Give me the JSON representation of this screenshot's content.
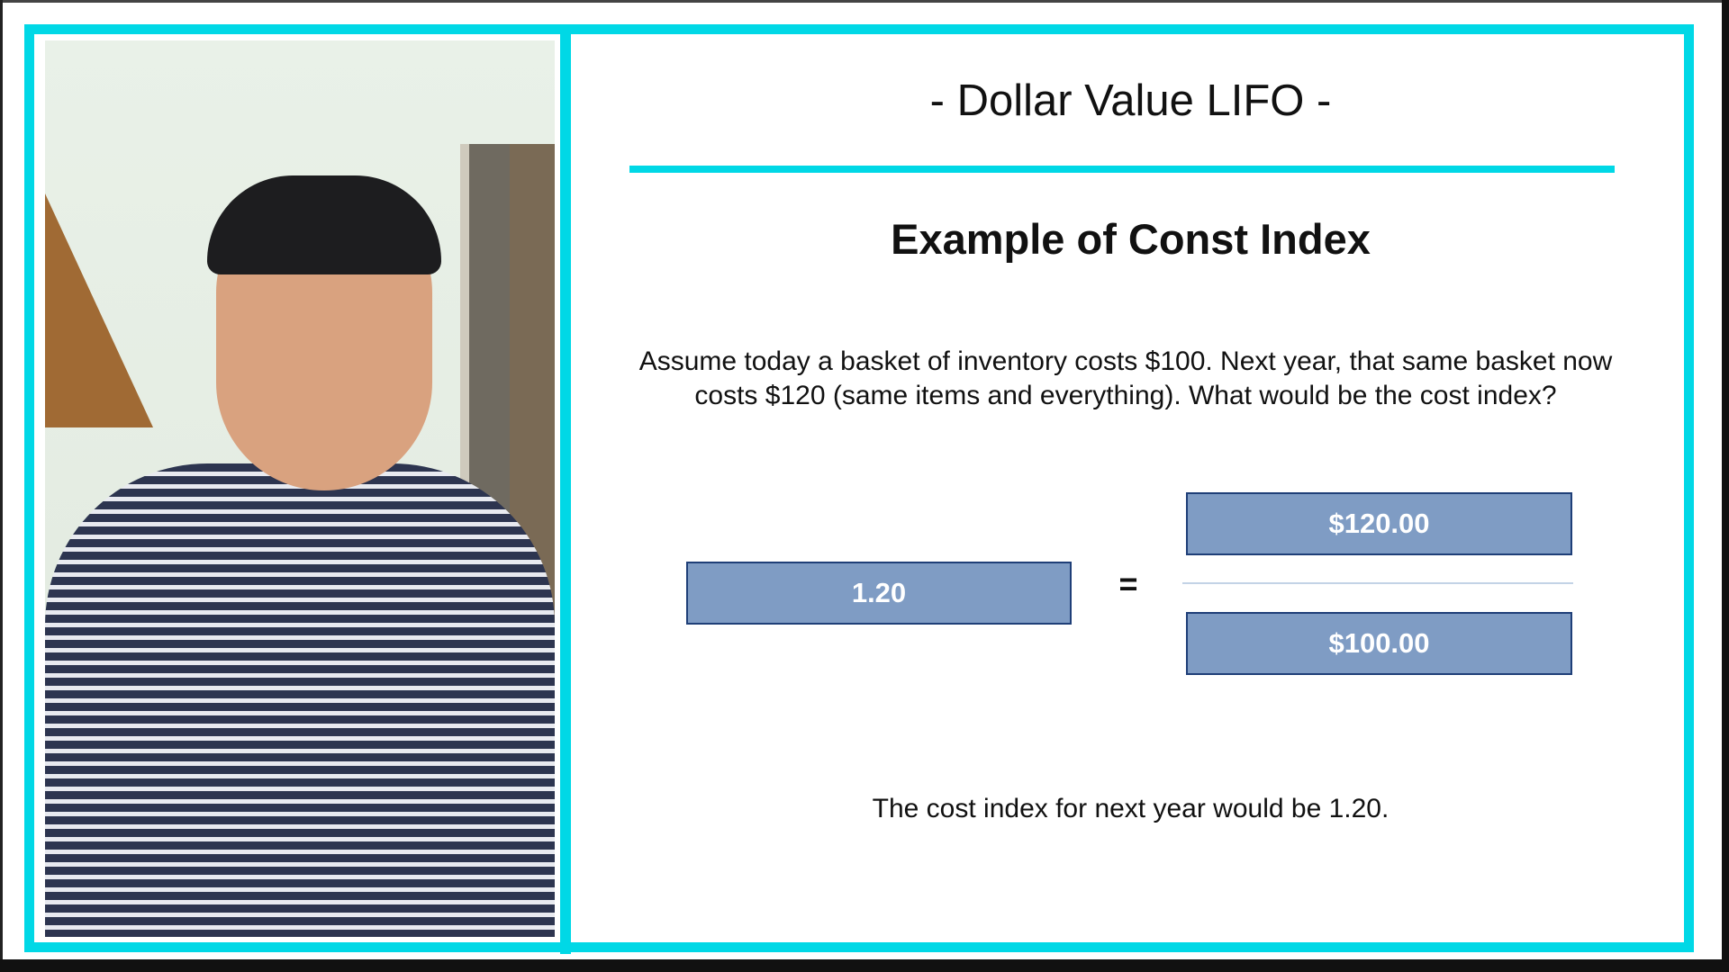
{
  "slide": {
    "title": "- Dollar Value LIFO -",
    "heading": "Example of Const Index",
    "question": "Assume today a basket of inventory costs $100. Next year, that same basket now costs $120 (same items and everything). What would be the cost index?",
    "equation": {
      "result": "1.20",
      "equals": "=",
      "numerator": "$120.00",
      "denominator": "$100.00"
    },
    "conclusion": "The cost index for next year would be 1.20."
  },
  "colors": {
    "accent": "#00d8e6",
    "box_fill": "#7f9cc4",
    "box_border": "#1f3f78"
  }
}
